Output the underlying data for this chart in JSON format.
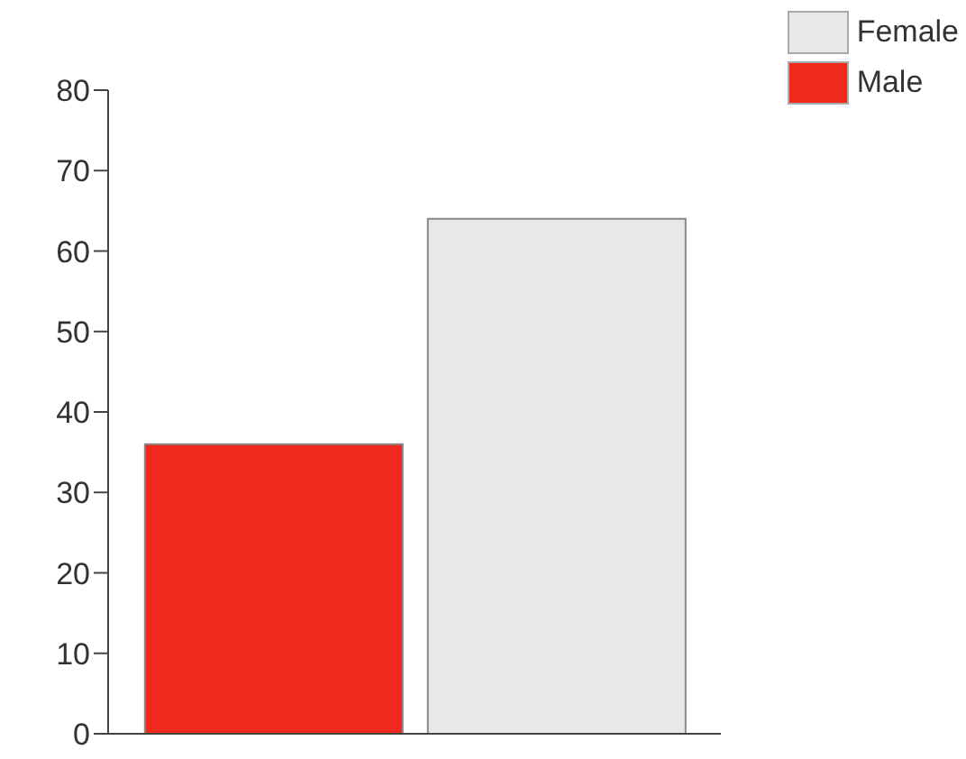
{
  "chart_data": {
    "type": "bar",
    "categories": [
      null
    ],
    "series": [
      {
        "name": "Male",
        "color": "#f0291e",
        "values": [
          36
        ]
      },
      {
        "name": "Female",
        "color": "#e8e8ea",
        "values": [
          64
        ]
      }
    ],
    "ylim": [
      0,
      80
    ],
    "yticks": [
      0,
      10,
      20,
      30,
      40,
      50,
      60,
      70,
      80
    ],
    "grid": false,
    "legend": "top right"
  }
}
